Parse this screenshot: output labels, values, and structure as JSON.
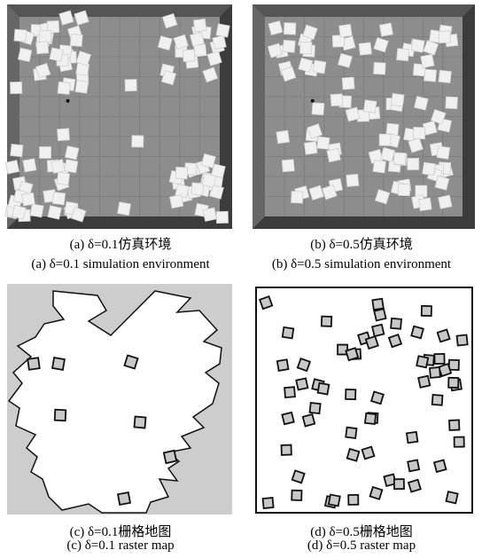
{
  "panels": [
    {
      "caption_cn": "(a) δ=0.1仿真环境",
      "caption_en": "(a) δ=0.1 simulation environment"
    },
    {
      "caption_cn": "(b) δ=0.5仿真环境",
      "caption_en": "(b) δ=0.5 simulation environment"
    },
    {
      "caption_cn": "(c) δ=0.1栅格地图",
      "caption_en": "(c) δ=0.1 raster map"
    },
    {
      "caption_cn": "(d) δ=0.5栅格地图",
      "caption_en": "(d) δ=0.5 raster map"
    }
  ]
}
